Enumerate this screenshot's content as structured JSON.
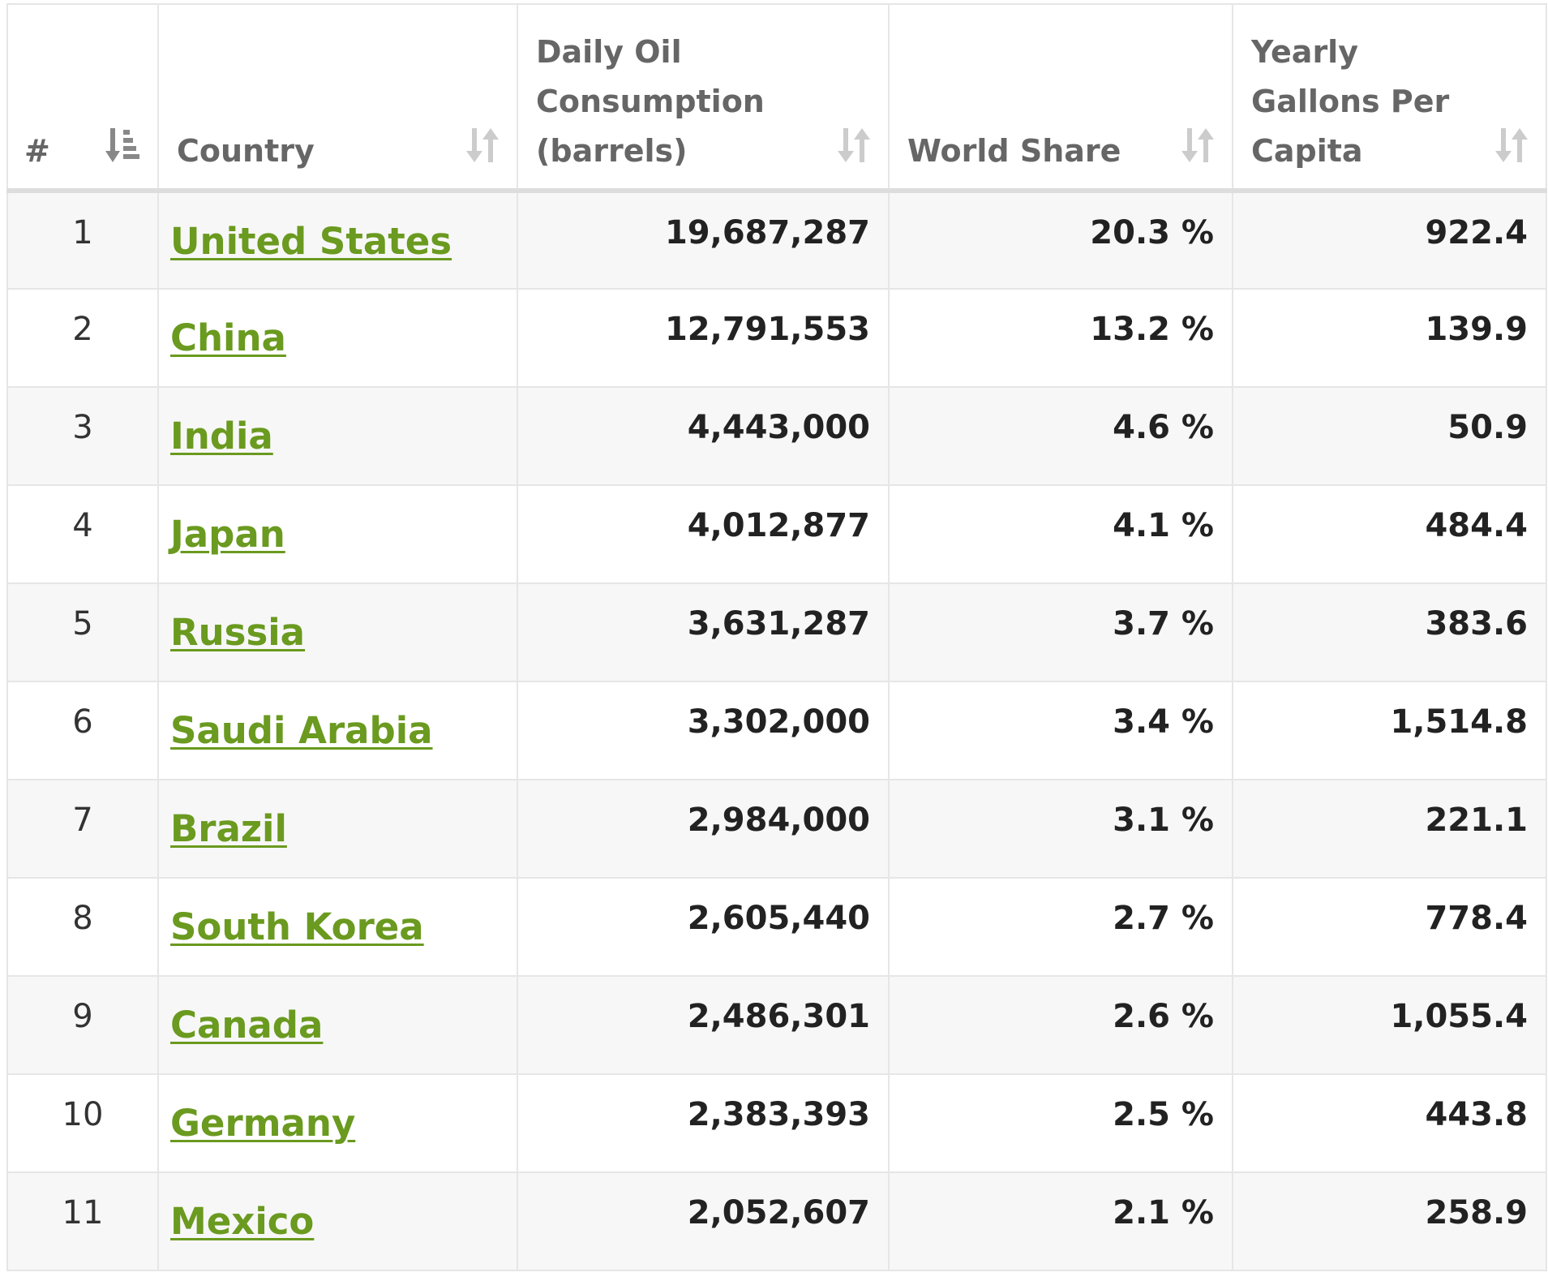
{
  "colors": {
    "link": "#6a9a1f",
    "header_text": "#666666",
    "row_alt": "#f7f7f7",
    "border": "#e6e6e6"
  },
  "header": {
    "rank": "#",
    "country": "Country",
    "daily_oil": "Daily Oil Consumption (barrels)",
    "world_share": "World Share",
    "yearly_gallons": "Yearly Gallons Per Capita"
  },
  "icons": {
    "rank_sort": "sort-descending-icon",
    "column_sort": "sort-both-icon"
  },
  "rows": [
    {
      "rank": "1",
      "country": "United States",
      "daily": "19,687,287",
      "share": "20.3 %",
      "gallons": "922.4"
    },
    {
      "rank": "2",
      "country": "China",
      "daily": "12,791,553",
      "share": "13.2 %",
      "gallons": "139.9"
    },
    {
      "rank": "3",
      "country": "India",
      "daily": "4,443,000",
      "share": "4.6 %",
      "gallons": "50.9"
    },
    {
      "rank": "4",
      "country": "Japan",
      "daily": "4,012,877",
      "share": "4.1 %",
      "gallons": "484.4"
    },
    {
      "rank": "5",
      "country": "Russia",
      "daily": "3,631,287",
      "share": "3.7 %",
      "gallons": "383.6"
    },
    {
      "rank": "6",
      "country": "Saudi Arabia",
      "daily": "3,302,000",
      "share": "3.4 %",
      "gallons": "1,514.8"
    },
    {
      "rank": "7",
      "country": "Brazil",
      "daily": "2,984,000",
      "share": "3.1 %",
      "gallons": "221.1"
    },
    {
      "rank": "8",
      "country": "South Korea",
      "daily": "2,605,440",
      "share": "2.7 %",
      "gallons": "778.4"
    },
    {
      "rank": "9",
      "country": "Canada",
      "daily": "2,486,301",
      "share": "2.6 %",
      "gallons": "1,055.4"
    },
    {
      "rank": "10",
      "country": "Germany",
      "daily": "2,383,393",
      "share": "2.5 %",
      "gallons": "443.8"
    },
    {
      "rank": "11",
      "country": "Mexico",
      "daily": "2,052,607",
      "share": "2.1 %",
      "gallons": "258.9"
    }
  ]
}
